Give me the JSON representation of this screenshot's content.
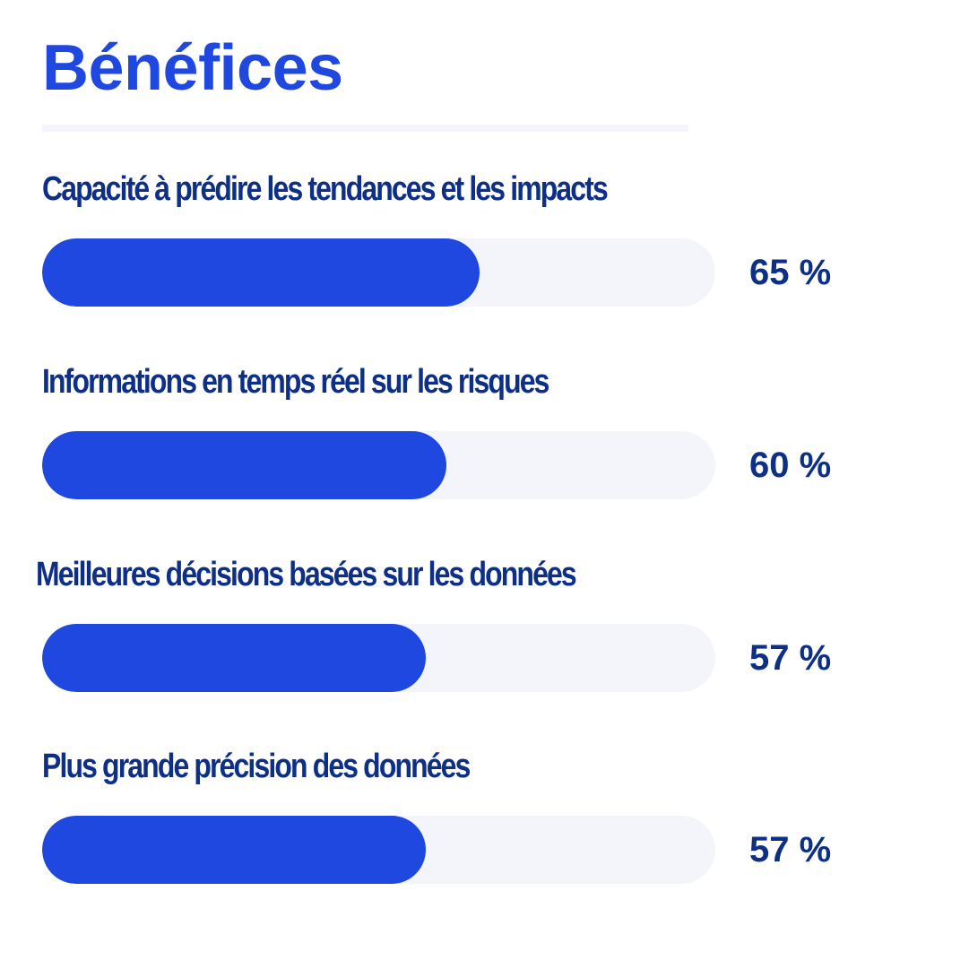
{
  "title": "Bénéfices",
  "colors": {
    "accent": "#1f48e0",
    "track": "#f3f5fb",
    "text": "#0d2f86"
  },
  "chart_data": {
    "type": "bar",
    "orientation": "horizontal",
    "categories": [
      "Capacité à prédire les tendances et les impacts",
      "Informations en temps réel sur les risques",
      "Meilleures décisions basées sur les données",
      "Plus grande précision des données"
    ],
    "values": [
      65,
      60,
      57,
      57
    ],
    "value_labels": [
      "65 %",
      "60 %",
      "57 %",
      "57 %"
    ],
    "xlim": [
      0,
      100
    ],
    "grid": false,
    "legend": "none"
  }
}
